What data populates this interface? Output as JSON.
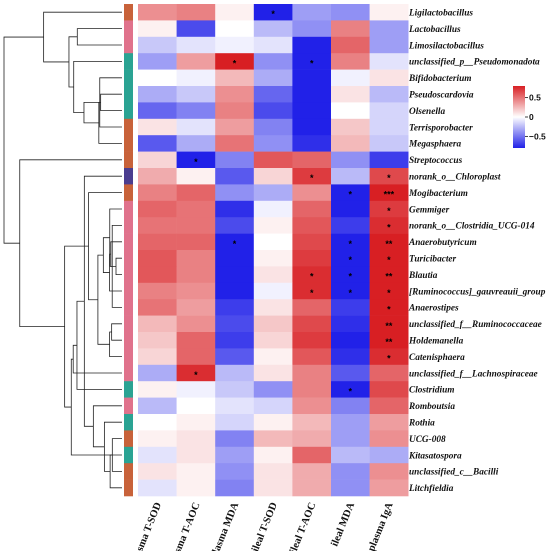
{
  "chart_data": {
    "type": "heatmap",
    "rows": [
      "Ligilactobacillus",
      "Lactobacillus",
      "Limosilactobacillus",
      "unclassified_p__Pseudomonadota",
      "Bifidobacterium",
      "Pseudoscardovia",
      "Olsenella",
      "Terrisporobacter",
      "Megasphaera",
      "Streptococcus",
      "norank_o__Chloroplast",
      "Mogibacterium",
      "Gemmiger",
      "norank_o__Clostridia_UCG-014",
      "Anaerobutyricum",
      "Turicibacter",
      "Blautia",
      "[Ruminococcus]_gauvreauii_group",
      "Anaerostipes",
      "unclassified_f__Ruminococcaceae",
      "Holdemanella",
      "Catenisphaera",
      "unclassified_f__Lachnospiraceae",
      "Clostridium",
      "Romboutsia",
      "Rothia",
      "UCG-008",
      "Kitasatospora",
      "unclassified_c__Bacilli",
      "Litchfieldia"
    ],
    "columns": [
      "plasma T-SOD",
      "plasma T-AOC",
      "plasma MDA",
      "ileal T-SOD",
      "ileal T-AOC",
      "ileal MDA",
      "plasma IgA"
    ],
    "values": [
      [
        0.4,
        0.45,
        0.05,
        -0.95,
        -0.35,
        -0.4,
        0.05
      ],
      [
        0.05,
        -0.65,
        0.0,
        -0.25,
        -0.4,
        0.45,
        -0.35
      ],
      [
        -0.2,
        -0.1,
        -0.05,
        -0.1,
        -0.95,
        0.55,
        -0.35
      ],
      [
        -0.35,
        0.35,
        0.85,
        -0.4,
        -0.8,
        0.45,
        -0.1
      ],
      [
        0.0,
        -0.05,
        0.25,
        -0.3,
        -0.8,
        -0.05,
        0.1
      ],
      [
        -0.3,
        -0.2,
        0.4,
        -0.55,
        -0.95,
        0.1,
        -0.25
      ],
      [
        -0.55,
        -0.45,
        0.45,
        -0.65,
        -0.9,
        0.0,
        -0.15
      ],
      [
        0.1,
        -0.1,
        0.35,
        -0.45,
        -0.85,
        0.2,
        -0.15
      ],
      [
        -0.6,
        -0.3,
        0.5,
        -0.4,
        -0.75,
        0.25,
        -0.2
      ],
      [
        0.15,
        -0.8,
        -0.45,
        0.6,
        0.55,
        -0.4,
        -0.7
      ],
      [
        0.3,
        0.05,
        -0.6,
        0.15,
        0.7,
        -0.25,
        0.65
      ],
      [
        0.45,
        0.55,
        -0.4,
        -0.3,
        0.4,
        -0.9,
        0.9
      ],
      [
        0.55,
        0.5,
        -0.75,
        -0.05,
        0.55,
        -0.8,
        0.7
      ],
      [
        0.5,
        0.5,
        -0.65,
        0.05,
        0.6,
        -0.7,
        0.75
      ],
      [
        0.55,
        0.55,
        -0.95,
        0.0,
        0.65,
        -0.95,
        0.8
      ],
      [
        0.6,
        0.45,
        -0.8,
        0.05,
        0.7,
        -0.9,
        0.8
      ],
      [
        0.6,
        0.45,
        -0.85,
        0.1,
        0.75,
        -0.95,
        0.85
      ],
      [
        0.45,
        0.4,
        -0.8,
        -0.05,
        0.75,
        -0.95,
        0.85
      ],
      [
        0.5,
        0.35,
        -0.7,
        0.1,
        0.55,
        -0.7,
        0.8
      ],
      [
        0.25,
        0.4,
        -0.65,
        0.2,
        0.65,
        -0.75,
        0.8
      ],
      [
        0.2,
        0.55,
        -0.7,
        0.15,
        0.7,
        -0.8,
        0.85
      ],
      [
        0.15,
        0.55,
        -0.6,
        0.05,
        0.6,
        -0.75,
        0.75
      ],
      [
        -0.3,
        0.75,
        -0.25,
        0.1,
        0.45,
        -0.6,
        0.55
      ],
      [
        0.05,
        -0.05,
        -0.2,
        -0.4,
        0.45,
        -0.9,
        0.65
      ],
      [
        -0.25,
        0.0,
        -0.1,
        -0.15,
        0.4,
        -0.45,
        0.55
      ],
      [
        0.0,
        0.05,
        -0.15,
        0.05,
        0.25,
        -0.35,
        0.35
      ],
      [
        0.05,
        0.1,
        -0.45,
        0.25,
        0.3,
        -0.35,
        0.4
      ],
      [
        -0.1,
        0.1,
        -0.35,
        0.05,
        0.55,
        -0.25,
        -0.3
      ],
      [
        0.1,
        0.05,
        -0.4,
        0.1,
        0.3,
        -0.4,
        0.4
      ],
      [
        -0.1,
        0.05,
        -0.45,
        0.1,
        0.3,
        -0.4,
        0.35
      ]
    ],
    "significance": [
      [
        "",
        "",
        "",
        "*",
        "",
        "",
        ""
      ],
      [
        "",
        "",
        "",
        "",
        "",
        "",
        ""
      ],
      [
        "",
        "",
        "",
        "",
        "",
        "",
        ""
      ],
      [
        "",
        "",
        "*",
        "",
        "*",
        "",
        ""
      ],
      [
        "",
        "",
        "",
        "",
        "",
        "",
        ""
      ],
      [
        "",
        "",
        "",
        "",
        "",
        "",
        ""
      ],
      [
        "",
        "",
        "",
        "",
        "",
        "",
        ""
      ],
      [
        "",
        "",
        "",
        "",
        "",
        "",
        ""
      ],
      [
        "",
        "",
        "",
        "",
        "",
        "",
        ""
      ],
      [
        "",
        "*",
        "",
        "",
        "",
        "",
        ""
      ],
      [
        "",
        "",
        "",
        "",
        "*",
        "",
        "*"
      ],
      [
        "",
        "",
        "",
        "",
        "",
        "*",
        "***"
      ],
      [
        "",
        "",
        "",
        "",
        "",
        "",
        "*"
      ],
      [
        "",
        "",
        "",
        "",
        "",
        "",
        "*"
      ],
      [
        "",
        "",
        "*",
        "",
        "",
        "*",
        "**"
      ],
      [
        "",
        "",
        "",
        "",
        "",
        "*",
        "*"
      ],
      [
        "",
        "",
        "",
        "",
        "*",
        "*",
        "**"
      ],
      [
        "",
        "",
        "",
        "",
        "*",
        "*",
        "*"
      ],
      [
        "",
        "",
        "",
        "",
        "",
        "",
        "*"
      ],
      [
        "",
        "",
        "",
        "",
        "",
        "",
        "**"
      ],
      [
        "",
        "",
        "",
        "",
        "",
        "",
        "**"
      ],
      [
        "",
        "",
        "",
        "",
        "",
        "",
        "*"
      ],
      [
        "",
        "*",
        "",
        "",
        "",
        "",
        ""
      ],
      [
        "",
        "",
        "",
        "",
        "",
        "*",
        ""
      ],
      [
        "",
        "",
        "",
        "",
        "",
        "",
        ""
      ],
      [
        "",
        "",
        "",
        "",
        "",
        "",
        ""
      ],
      [
        "",
        "",
        "",
        "",
        "",
        "",
        ""
      ],
      [
        "",
        "",
        "",
        "",
        "",
        "",
        ""
      ],
      [
        "",
        "",
        "",
        "",
        "",
        "",
        ""
      ],
      [
        "",
        "",
        "",
        "",
        "",
        "",
        ""
      ]
    ],
    "row_groups": [
      "orange",
      "pink",
      "pink",
      "teal",
      "teal",
      "teal",
      "teal",
      "orange",
      "orange",
      "orange",
      "purple",
      "orange",
      "pink",
      "pink",
      "pink",
      "pink",
      "pink",
      "pink",
      "pink",
      "pink",
      "pink",
      "pink",
      "pink",
      "teal",
      "pink",
      "teal",
      "orange",
      "teal",
      "orange",
      "orange"
    ],
    "group_colors": {
      "orange": "#c8623a",
      "pink": "#e0728c",
      "teal": "#2aa393",
      "purple": "#4b3d8f"
    },
    "colorscale": {
      "min": -0.8,
      "max": 0.8,
      "low": "#2121e8",
      "mid": "#ffffff",
      "high": "#d81f23"
    },
    "legend": {
      "ticks": [
        0.5,
        0,
        -0.5
      ],
      "tick_labels": [
        "0.5",
        "0",
        "−0.5"
      ],
      "position": "right"
    },
    "dendrogram": true
  }
}
